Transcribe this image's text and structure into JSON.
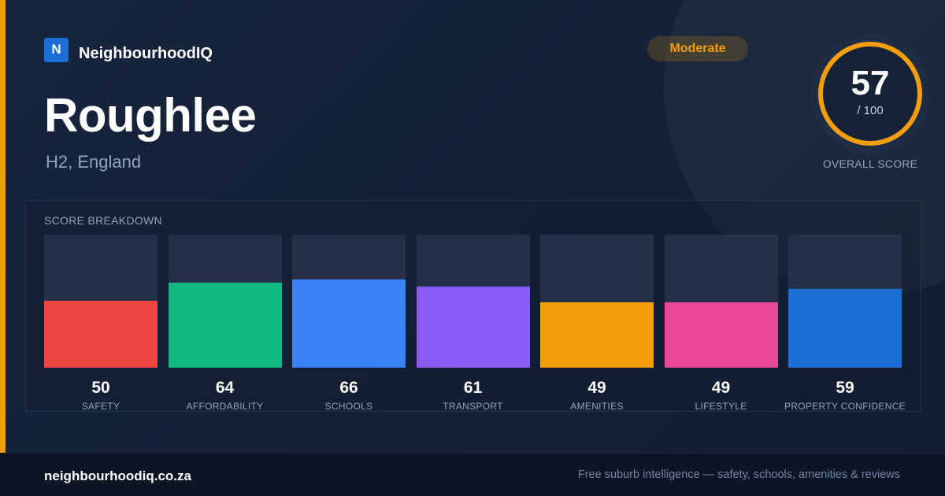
{
  "brand": {
    "logo_letter": "N",
    "name": "NeighbourhoodIQ"
  },
  "place": {
    "name": "Roughlee",
    "location": "H2, England"
  },
  "rating_badge": "Moderate",
  "overall": {
    "score": "57",
    "max_label": "/ 100",
    "score_fraction": 0.57,
    "label": "OVERALL SCORE"
  },
  "colors": {
    "accent": "#f59e0b",
    "background": "#152238",
    "track": "#243149"
  },
  "breakdown": {
    "title": "SCORE BREAKDOWN",
    "max": 100,
    "items": [
      {
        "label": "SAFETY",
        "value": 50,
        "color": "#ef4444"
      },
      {
        "label": "AFFORDABILITY",
        "value": 64,
        "color": "#10b981"
      },
      {
        "label": "SCHOOLS",
        "value": 66,
        "color": "#3b82f6"
      },
      {
        "label": "TRANSPORT",
        "value": 61,
        "color": "#8b5cf6"
      },
      {
        "label": "AMENITIES",
        "value": 49,
        "color": "#f59e0b"
      },
      {
        "label": "LIFESTYLE",
        "value": 49,
        "color": "#ec4899"
      },
      {
        "label": "PROPERTY CONFIDENCE",
        "value": 59,
        "color": "#1d6fd8"
      }
    ]
  },
  "footer": {
    "domain": "neighbourhoodiq.co.za",
    "tagline": "Free suburb intelligence — safety, schools, amenities & reviews"
  }
}
